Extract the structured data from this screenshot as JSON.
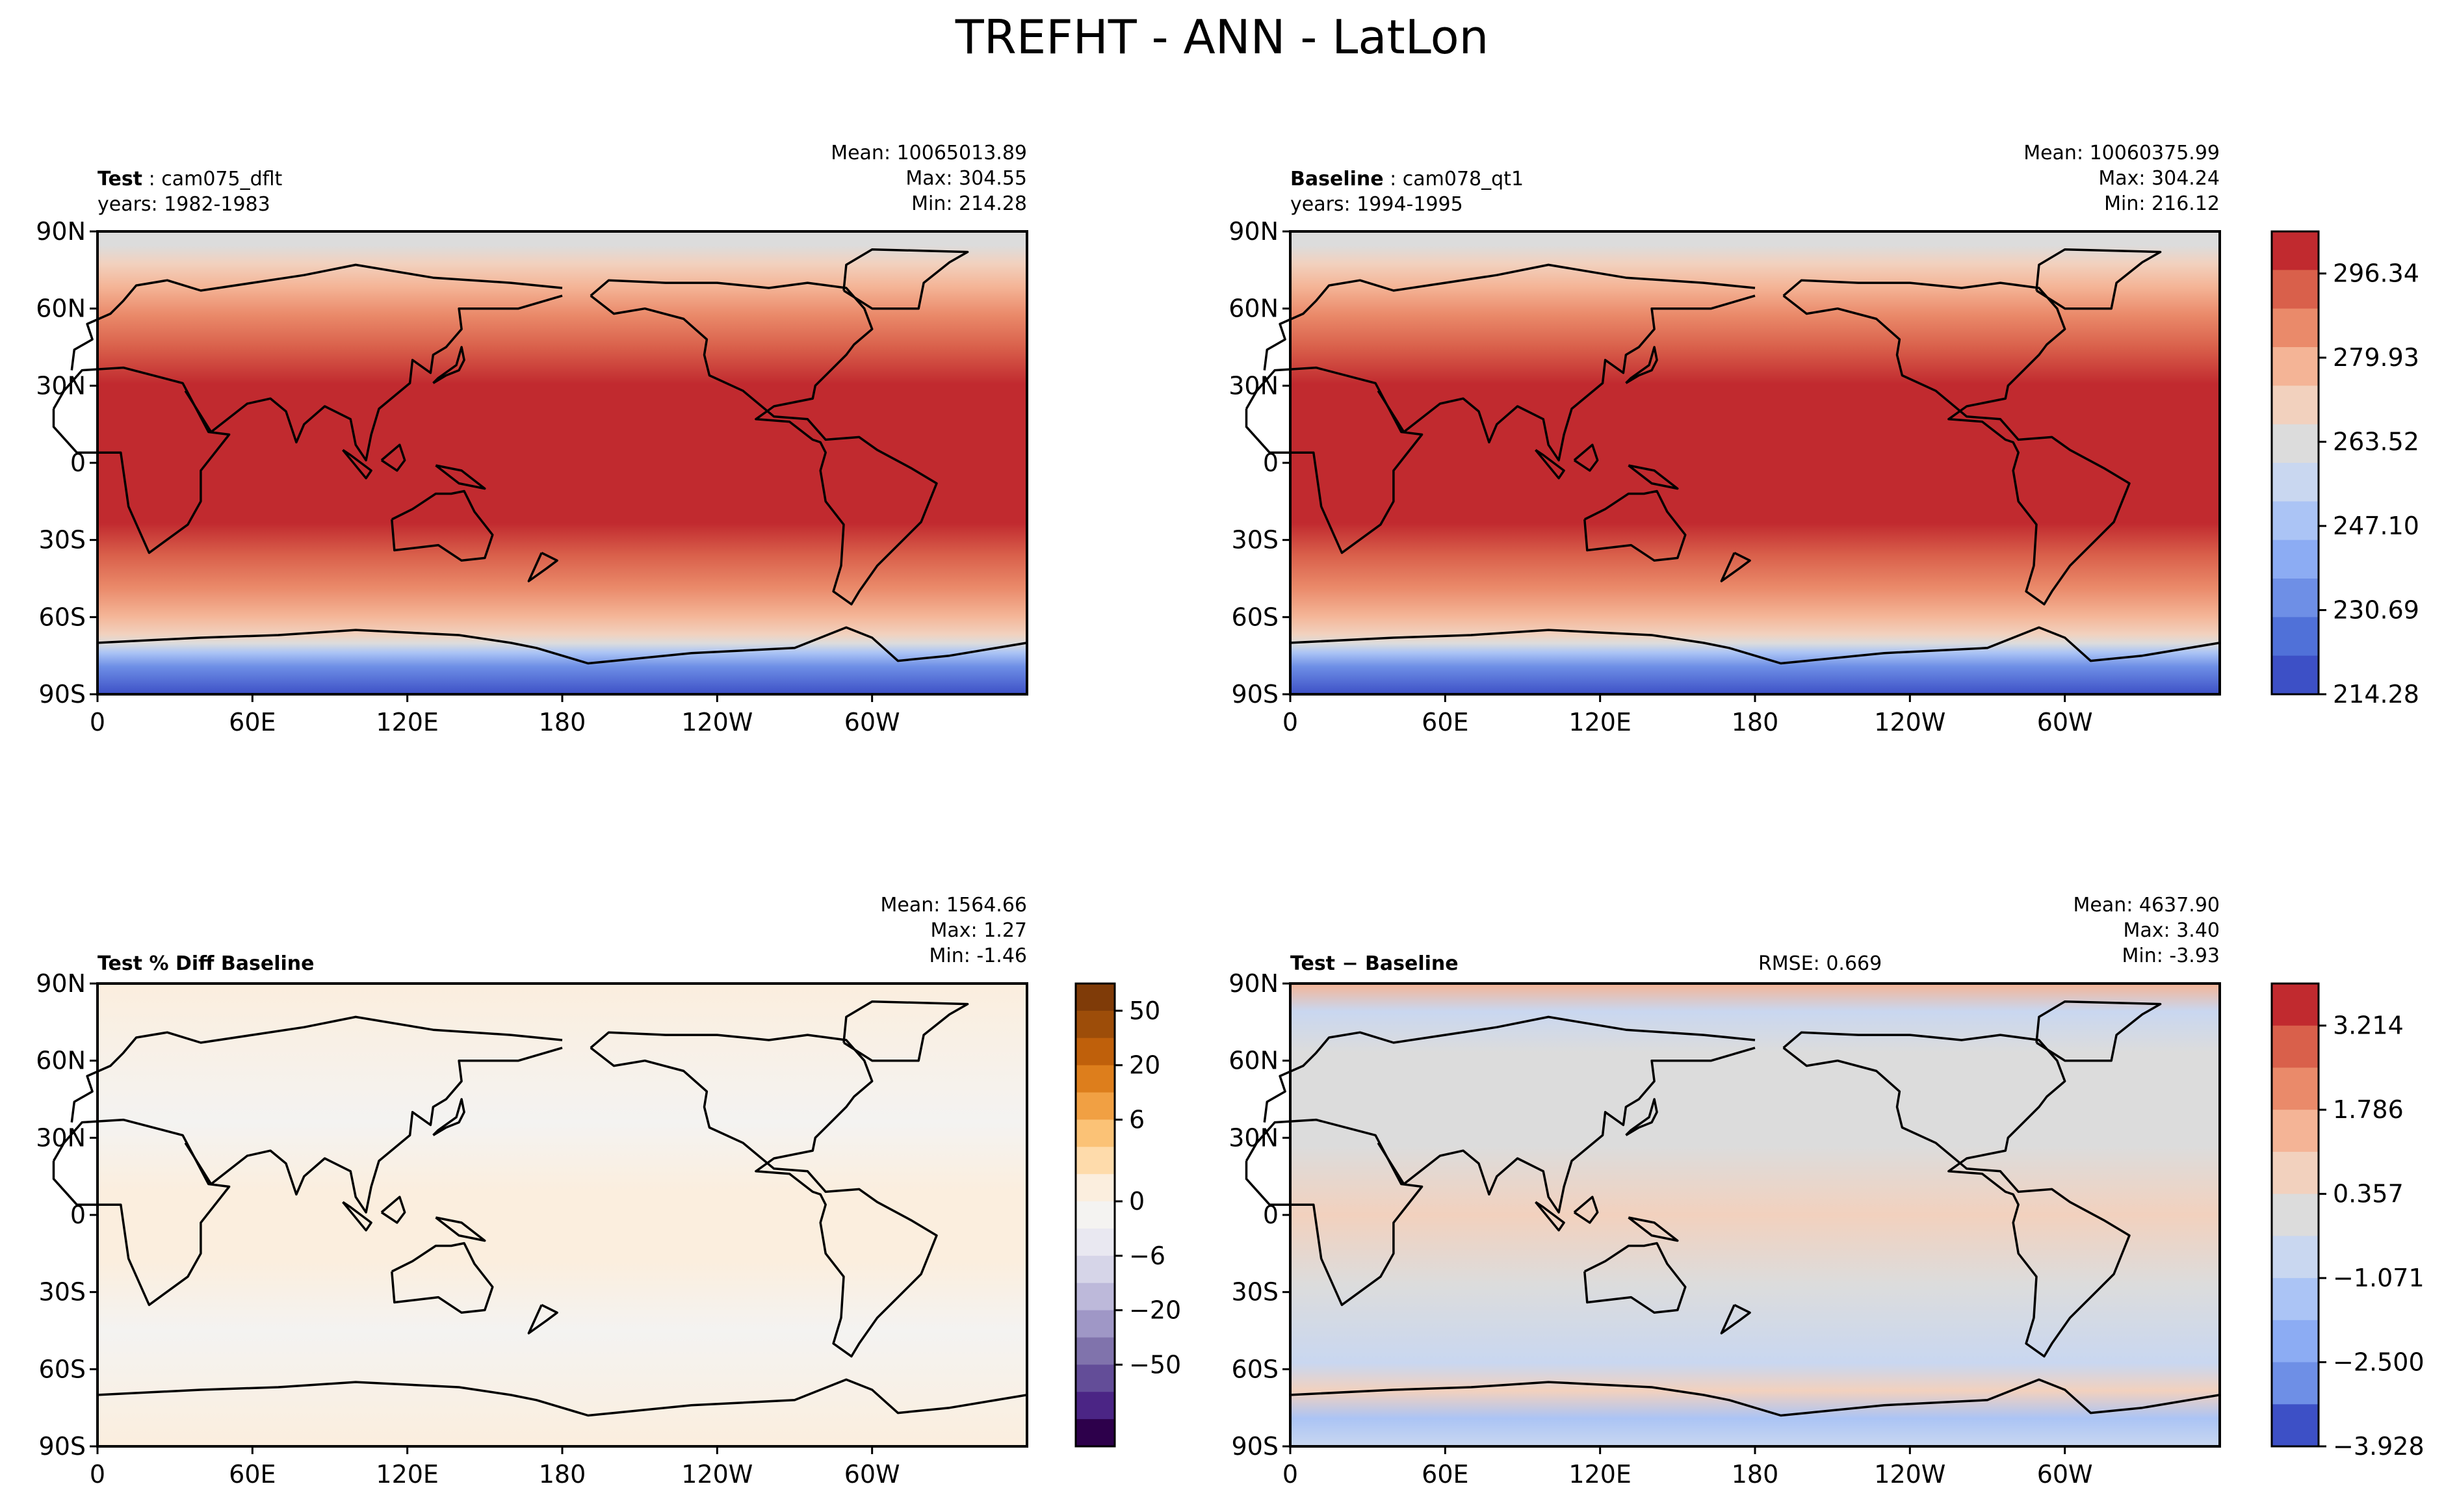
{
  "figure_title": "TREFHT - ANN - LatLon",
  "lat_ticks": [
    "90N",
    "60N",
    "30N",
    "0",
    "30S",
    "60S",
    "90S"
  ],
  "lon_ticks": [
    "0",
    "60E",
    "120E",
    "180",
    "120W",
    "60W"
  ],
  "panels": [
    {
      "id": "test",
      "label_bold": "Test",
      "label_rest": ": cam075_dflt",
      "years": "years: 1982-1983",
      "stats": [
        "Mean: 10065013.89",
        "Max: 304.55",
        "Min: 214.28"
      ],
      "rmse": ""
    },
    {
      "id": "baseline",
      "label_bold": "Baseline",
      "label_rest": ": cam078_qt1",
      "years": "years: 1994-1995",
      "stats": [
        "Mean: 10060375.99",
        "Max: 304.24",
        "Min: 216.12"
      ],
      "rmse": ""
    },
    {
      "id": "pctdiff",
      "label_bold": "Test % Diff Baseline",
      "label_rest": "",
      "years": "",
      "stats": [
        "Mean: 1564.66",
        "Max:  1.27",
        "Min: -1.46"
      ],
      "rmse": ""
    },
    {
      "id": "diff",
      "label_bold": "Test − Baseline",
      "label_rest": "",
      "years": "",
      "stats": [
        "Mean: 4637.90",
        "Max:  3.40",
        "Min: -3.93"
      ],
      "rmse": "RMSE: 0.669"
    }
  ],
  "colorbars": {
    "main": {
      "labels": [
        "296.34",
        "279.93",
        "263.52",
        "247.10",
        "230.69",
        "214.28"
      ],
      "colors": [
        "#c12a2f",
        "#d9604b",
        "#ea8a6a",
        "#f4b496",
        "#f2d1be",
        "#dcdcdc",
        "#c9d7f0",
        "#abc4f5",
        "#8cacf3",
        "#6e8fe6",
        "#5071d8",
        "#3d50c6"
      ]
    },
    "pct": {
      "labels": [
        "50",
        "20",
        "6",
        "0",
        "−6",
        "−20",
        "−50"
      ],
      "colors": [
        "#7f3b08",
        "#9d4d09",
        "#bf600b",
        "#dd7e1c",
        "#f1a043",
        "#fbc276",
        "#fedbab",
        "#fbeede",
        "#f4f3f1",
        "#e9e8f1",
        "#d6d5e8",
        "#bdb9da",
        "#9f97c6",
        "#8073ac",
        "#634d98",
        "#4b2585",
        "#2d004b"
      ]
    },
    "diff": {
      "labels": [
        "3.214",
        "1.786",
        "0.357",
        "−1.071",
        "−2.500",
        "−3.928"
      ],
      "colors": [
        "#c12a2f",
        "#d9604b",
        "#ea8a6a",
        "#f4b496",
        "#f2d1be",
        "#dcdcdc",
        "#c9d7f0",
        "#abc4f5",
        "#8cacf3",
        "#6e8fe6",
        "#3d50c6"
      ]
    }
  },
  "chart_data": [
    {
      "type": "heatmap",
      "title": "Test: cam075_dflt",
      "variable": "TREFHT",
      "season": "ANN",
      "lat_range": [
        -90,
        90
      ],
      "lon_range": [
        0,
        360
      ],
      "zlim": [
        214.28,
        304.55
      ],
      "levels": [
        214.28,
        230.69,
        247.1,
        263.52,
        279.93,
        296.34
      ],
      "stats": {
        "mean": 10065013.89,
        "max": 304.55,
        "min": 214.28
      }
    },
    {
      "type": "heatmap",
      "title": "Baseline: cam078_qt1",
      "variable": "TREFHT",
      "season": "ANN",
      "lat_range": [
        -90,
        90
      ],
      "lon_range": [
        0,
        360
      ],
      "zlim": [
        216.12,
        304.24
      ],
      "levels": [
        214.28,
        230.69,
        247.1,
        263.52,
        279.93,
        296.34
      ],
      "stats": {
        "mean": 10060375.99,
        "max": 304.24,
        "min": 216.12
      }
    },
    {
      "type": "heatmap",
      "title": "Test % Diff Baseline",
      "lat_range": [
        -90,
        90
      ],
      "lon_range": [
        0,
        360
      ],
      "levels": [
        -50,
        -20,
        -6,
        0,
        6,
        20,
        50
      ],
      "stats": {
        "mean": 1564.66,
        "max": 1.27,
        "min": -1.46
      }
    },
    {
      "type": "heatmap",
      "title": "Test − Baseline",
      "lat_range": [
        -90,
        90
      ],
      "lon_range": [
        0,
        360
      ],
      "levels": [
        -3.928,
        -2.5,
        -1.071,
        0.357,
        1.786,
        3.214
      ],
      "stats": {
        "mean": 4637.9,
        "max": 3.4,
        "min": -3.93,
        "rmse": 0.669
      }
    }
  ]
}
